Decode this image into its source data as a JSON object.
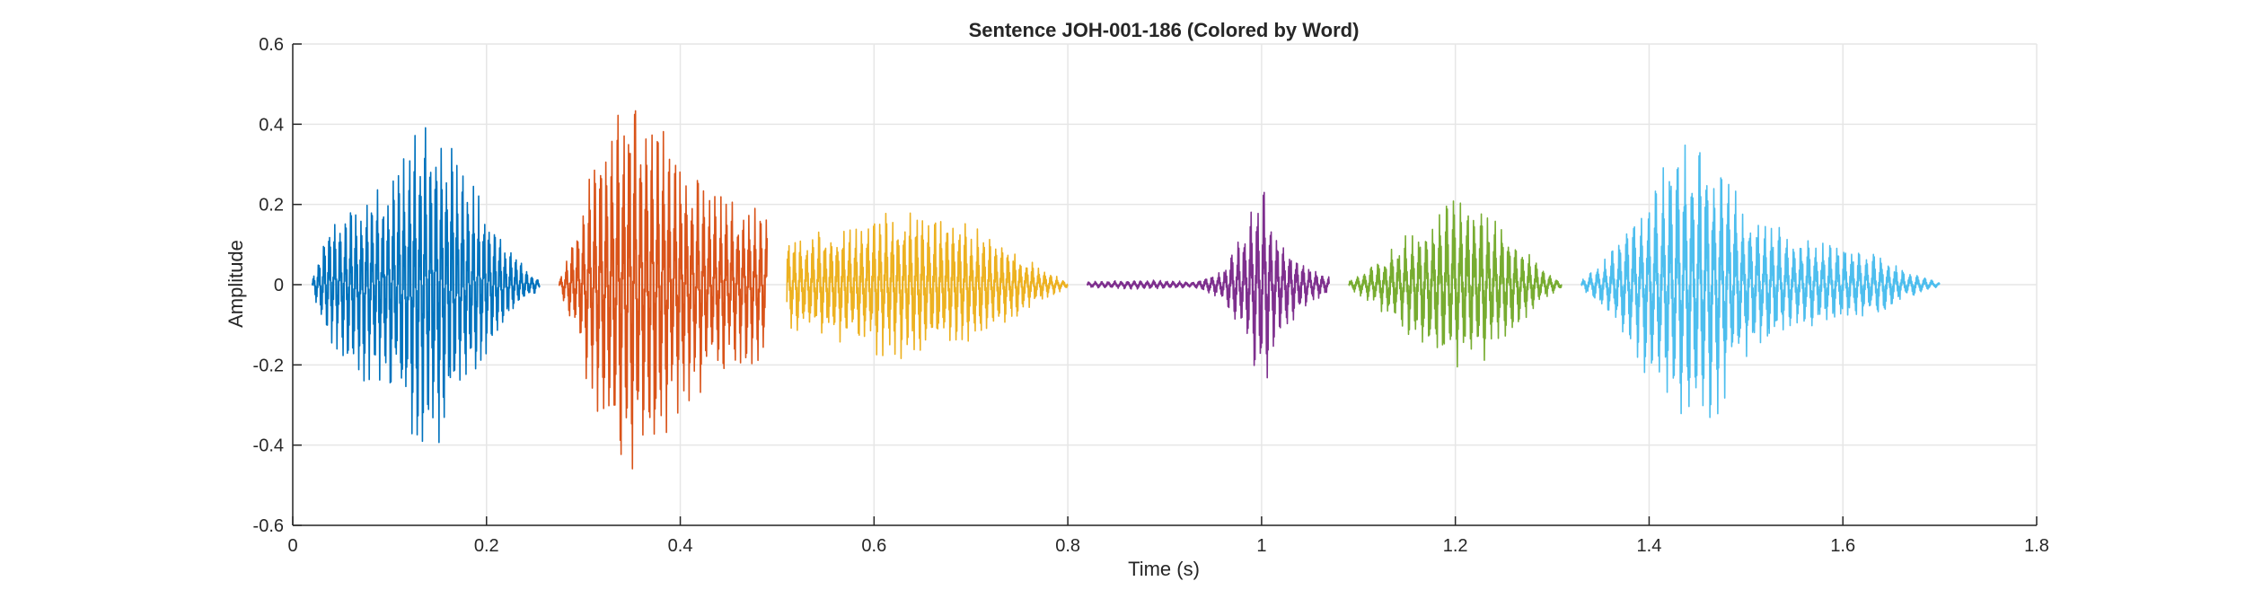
{
  "chart_data": {
    "type": "line",
    "title": "Sentence JOH-001-186 (Colored by Word)",
    "xlabel": "Time (s)",
    "ylabel": "Amplitude",
    "xlim": [
      0,
      1.8
    ],
    "ylim": [
      -0.6,
      0.6
    ],
    "xticks": [
      "0",
      "0.2",
      "0.4",
      "0.6",
      "0.8",
      "1",
      "1.2",
      "1.4",
      "1.6",
      "1.8"
    ],
    "yticks": [
      "-0.6",
      "-0.4",
      "-0.2",
      "0",
      "0.2",
      "0.4",
      "0.6"
    ],
    "grid": true,
    "series": [
      {
        "start": 0.02,
        "end": 0.255,
        "color": "#0072BD",
        "envelope": [
          [
            0.02,
            0.01
          ],
          [
            0.035,
            0.15
          ],
          [
            0.06,
            0.22
          ],
          [
            0.1,
            0.28
          ],
          [
            0.125,
            0.4
          ],
          [
            0.14,
            0.45
          ],
          [
            0.16,
            0.38
          ],
          [
            0.19,
            0.25
          ],
          [
            0.22,
            0.1
          ],
          [
            0.255,
            0.01
          ]
        ]
      },
      {
        "start": 0.275,
        "end": 0.49,
        "color": "#D95319",
        "envelope": [
          [
            0.275,
            0.01
          ],
          [
            0.29,
            0.12
          ],
          [
            0.31,
            0.3
          ],
          [
            0.33,
            0.42
          ],
          [
            0.35,
            0.52
          ],
          [
            0.38,
            0.45
          ],
          [
            0.41,
            0.3
          ],
          [
            0.45,
            0.22
          ],
          [
            0.49,
            0.2
          ]
        ]
      },
      {
        "start": 0.51,
        "end": 0.8,
        "color": "#EDB120",
        "envelope": [
          [
            0.51,
            0.12
          ],
          [
            0.55,
            0.14
          ],
          [
            0.6,
            0.18
          ],
          [
            0.63,
            0.2
          ],
          [
            0.66,
            0.18
          ],
          [
            0.7,
            0.15
          ],
          [
            0.74,
            0.1
          ],
          [
            0.78,
            0.03
          ],
          [
            0.8,
            0.01
          ]
        ]
      },
      {
        "start": 0.82,
        "end": 1.07,
        "color": "#7E2F8E",
        "envelope": [
          [
            0.82,
            0.008
          ],
          [
            0.88,
            0.012
          ],
          [
            0.93,
            0.008
          ],
          [
            0.96,
            0.04
          ],
          [
            0.98,
            0.14
          ],
          [
            1.0,
            0.28
          ],
          [
            1.02,
            0.12
          ],
          [
            1.05,
            0.05
          ],
          [
            1.07,
            0.02
          ]
        ]
      },
      {
        "start": 1.09,
        "end": 1.31,
        "color": "#77AC30",
        "envelope": [
          [
            1.09,
            0.01
          ],
          [
            1.12,
            0.06
          ],
          [
            1.16,
            0.15
          ],
          [
            1.2,
            0.22
          ],
          [
            1.23,
            0.2
          ],
          [
            1.26,
            0.12
          ],
          [
            1.29,
            0.04
          ],
          [
            1.31,
            0.01
          ]
        ]
      },
      {
        "start": 1.33,
        "end": 1.7,
        "color": "#4DBEEE",
        "envelope": [
          [
            1.33,
            0.01
          ],
          [
            1.36,
            0.08
          ],
          [
            1.4,
            0.25
          ],
          [
            1.44,
            0.38
          ],
          [
            1.47,
            0.34
          ],
          [
            1.5,
            0.2
          ],
          [
            1.55,
            0.12
          ],
          [
            1.6,
            0.1
          ],
          [
            1.64,
            0.08
          ],
          [
            1.66,
            0.04
          ],
          [
            1.7,
            0.005
          ]
        ]
      }
    ]
  }
}
